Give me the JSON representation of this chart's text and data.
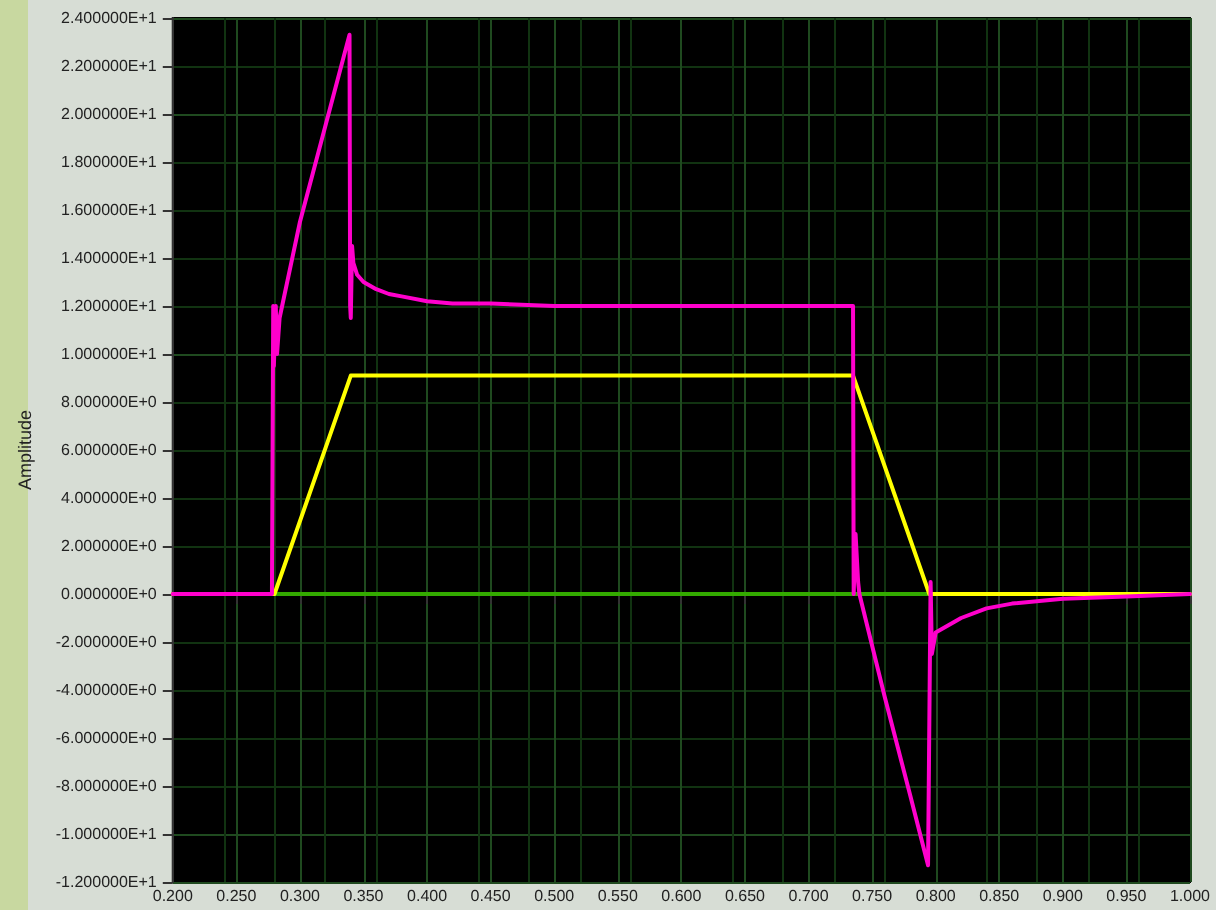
{
  "chart_data": {
    "type": "line",
    "ylabel": "Amplitude",
    "xlim": [
      0.2,
      1.0
    ],
    "xticks": [
      {
        "value": 0.2,
        "label": "0.200"
      },
      {
        "value": 0.25,
        "label": "0.250"
      },
      {
        "value": 0.3,
        "label": "0.300"
      },
      {
        "value": 0.35,
        "label": "0.350"
      },
      {
        "value": 0.4,
        "label": "0.400"
      },
      {
        "value": 0.45,
        "label": "0.450"
      },
      {
        "value": 0.5,
        "label": "0.500"
      },
      {
        "value": 0.55,
        "label": "0.550"
      },
      {
        "value": 0.6,
        "label": "0.600"
      },
      {
        "value": 0.65,
        "label": "0.650"
      },
      {
        "value": 0.7,
        "label": "0.700"
      },
      {
        "value": 0.75,
        "label": "0.750"
      },
      {
        "value": 0.8,
        "label": "0.800"
      },
      {
        "value": 0.85,
        "label": "0.850"
      },
      {
        "value": 0.9,
        "label": "0.900"
      },
      {
        "value": 0.95,
        "label": "0.950"
      },
      {
        "value": 1.0,
        "label": "1.000"
      }
    ],
    "ylim": [
      -12,
      24
    ],
    "yticks": [
      {
        "value": -12,
        "label": "-1.200000E+1"
      },
      {
        "value": -10,
        "label": "-1.000000E+1"
      },
      {
        "value": -8,
        "label": "-8.000000E+0"
      },
      {
        "value": -6,
        "label": "-6.000000E+0"
      },
      {
        "value": -4,
        "label": "-4.000000E+0"
      },
      {
        "value": -2,
        "label": "-2.000000E+0"
      },
      {
        "value": 0,
        "label": "0.000000E+0"
      },
      {
        "value": 2,
        "label": "2.000000E+0"
      },
      {
        "value": 4,
        "label": "4.000000E+0"
      },
      {
        "value": 6,
        "label": "6.000000E+0"
      },
      {
        "value": 8,
        "label": "8.000000E+0"
      },
      {
        "value": 10,
        "label": "1.000000E+1"
      },
      {
        "value": 12,
        "label": "1.200000E+1"
      },
      {
        "value": 14,
        "label": "1.400000E+1"
      },
      {
        "value": 16,
        "label": "1.600000E+1"
      },
      {
        "value": 18,
        "label": "1.800000E+1"
      },
      {
        "value": 20,
        "label": "2.000000E+1"
      },
      {
        "value": 22,
        "label": "2.200000E+1"
      },
      {
        "value": 24,
        "label": "2.400000E+1"
      }
    ],
    "grid": true,
    "marker": "none",
    "line_style": "solid",
    "series": [
      {
        "color": "#33aa00",
        "x": [
          0.2,
          1.0
        ],
        "values": [
          0,
          0
        ]
      },
      {
        "color": "#ffff00",
        "x": [
          0.2,
          0.28,
          0.34,
          0.735,
          0.795,
          1.0
        ],
        "values": [
          0,
          0,
          9.1,
          9.1,
          0,
          0
        ]
      },
      {
        "color": "#ff00cc",
        "x": [
          0.2,
          0.278,
          0.279,
          0.2795,
          0.281,
          0.282,
          0.284,
          0.3,
          0.32,
          0.339,
          0.3395,
          0.34,
          0.341,
          0.342,
          0.345,
          0.35,
          0.36,
          0.37,
          0.38,
          0.4,
          0.42,
          0.45,
          0.5,
          0.6,
          0.7,
          0.735,
          0.7355,
          0.737,
          0.738,
          0.739,
          0.74,
          0.76,
          0.78,
          0.794,
          0.795,
          0.796,
          0.797,
          0.8,
          0.81,
          0.82,
          0.84,
          0.86,
          0.9,
          0.95,
          1.0
        ],
        "values": [
          0,
          0,
          12,
          9.5,
          12,
          10,
          11.5,
          15.5,
          19.5,
          23.3,
          12,
          11.5,
          14.5,
          13.8,
          13.3,
          13,
          12.7,
          12.5,
          12.4,
          12.2,
          12.1,
          12.1,
          12,
          12,
          12,
          12,
          0,
          2.5,
          1.5,
          0.5,
          0,
          -4.3,
          -8.4,
          -11.3,
          -11.3,
          0.5,
          -2.5,
          -1.6,
          -1.3,
          -1,
          -0.6,
          -0.4,
          -0.2,
          -0.1,
          0
        ]
      }
    ]
  }
}
